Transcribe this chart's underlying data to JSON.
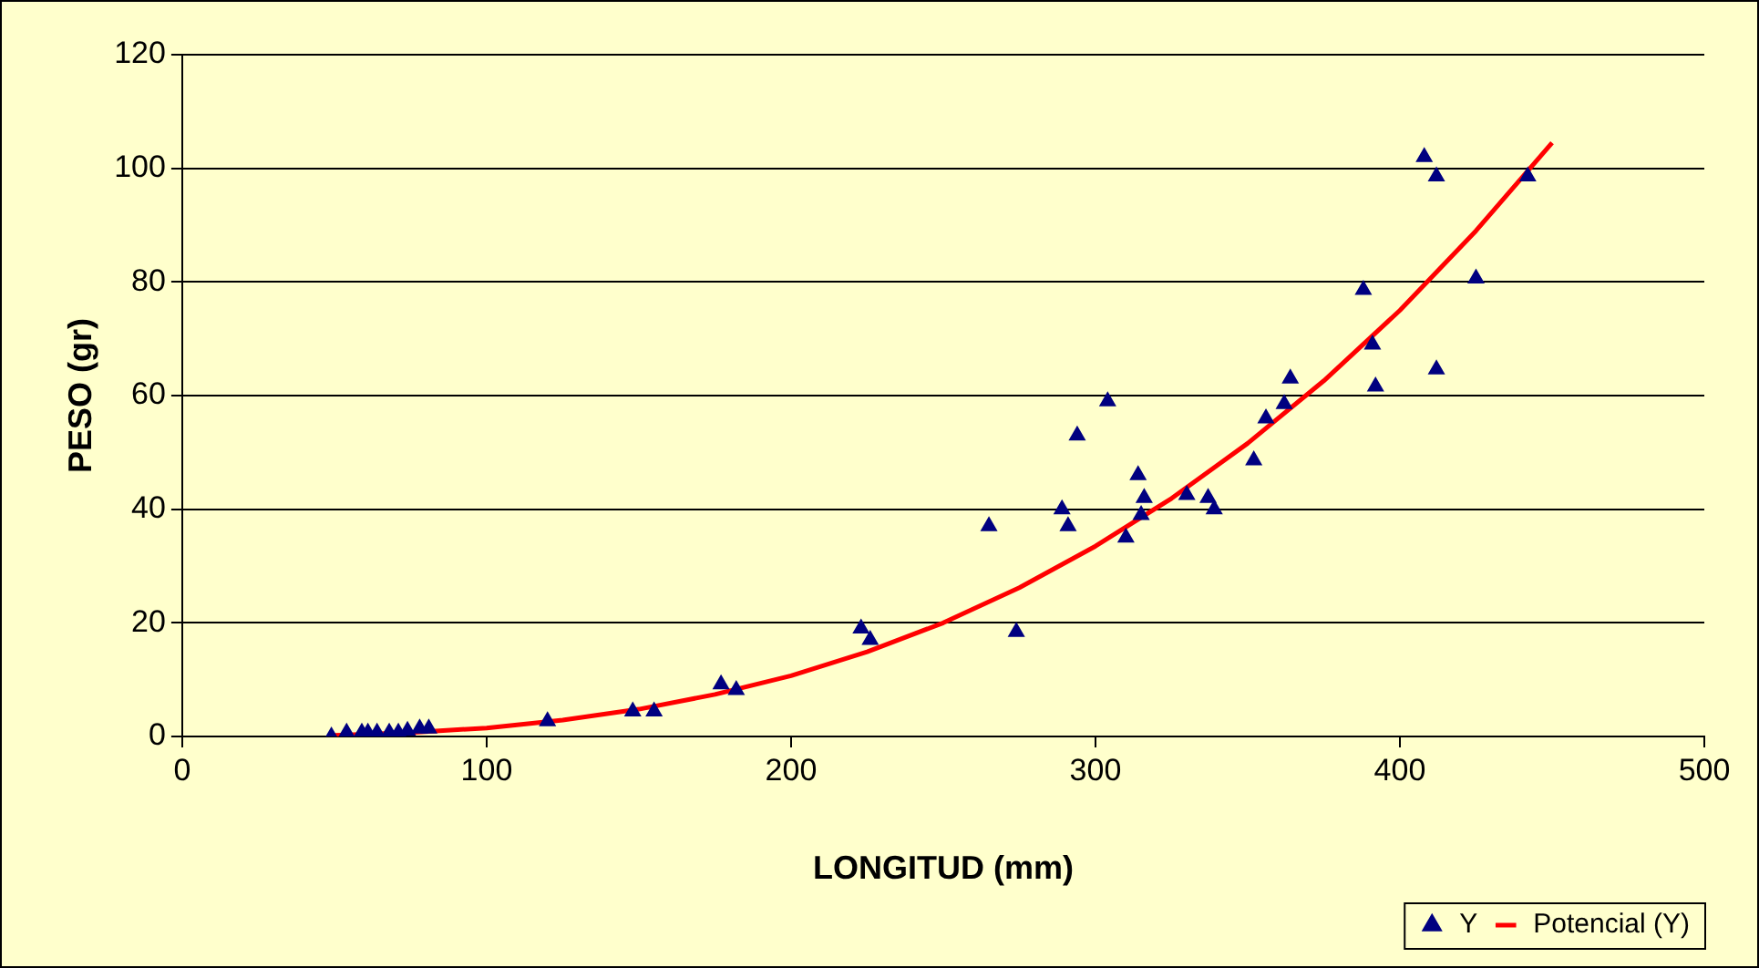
{
  "chart_data": {
    "type": "scatter",
    "xlabel": "LONGITUD (mm)",
    "ylabel": "PESO (gr)",
    "xlim": [
      0,
      500
    ],
    "xticks": [
      0,
      100,
      200,
      300,
      400,
      500
    ],
    "ylim": [
      0,
      120
    ],
    "yticks": [
      0,
      20,
      40,
      60,
      80,
      100,
      120
    ],
    "grid": "y",
    "legend": "bottom right",
    "marker": "triangle",
    "series": [
      {
        "name": "Y",
        "type": "scatter",
        "color": "#000080",
        "x": [
          49,
          54,
          59,
          61,
          64,
          68,
          71,
          74,
          78,
          81,
          120,
          148,
          155,
          177,
          182,
          223,
          226,
          265,
          274,
          289,
          291,
          294,
          304,
          310,
          314,
          315,
          316,
          330,
          337,
          339,
          352,
          356,
          362,
          364,
          388,
          391,
          392,
          408,
          412,
          412,
          425,
          442
        ],
        "values": [
          0,
          0.7,
          0.7,
          0.7,
          0.7,
          0.7,
          0.7,
          1,
          1.4,
          1.4,
          2.7,
          4.4,
          4.4,
          9.2,
          8.2,
          19,
          17,
          37,
          18.4,
          40,
          37,
          53,
          59,
          35,
          46,
          39,
          42,
          42.5,
          42,
          40,
          48.6,
          56,
          58.5,
          63,
          78.6,
          69,
          61.6,
          102,
          98.6,
          64.6,
          80.6,
          98.6
        ]
      },
      {
        "name": "Potencial (Y)",
        "type": "line",
        "color": "#ff0000",
        "marker": "none",
        "line_style": "solid",
        "x": [
          50,
          75,
          100,
          125,
          150,
          175,
          200,
          225,
          250,
          275,
          300,
          325,
          350,
          375,
          400,
          425,
          450
        ],
        "values": [
          0.2,
          0.7,
          1.5,
          2.9,
          4.8,
          7.4,
          10.7,
          14.9,
          20.0,
          26.2,
          33.5,
          41.9,
          51.6,
          62.6,
          75.0,
          89.0,
          104.5
        ]
      }
    ]
  }
}
